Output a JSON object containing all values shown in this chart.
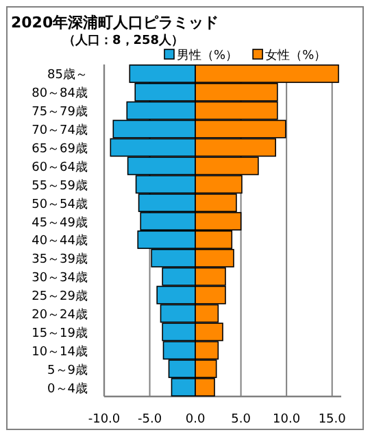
{
  "chart_data": {
    "type": "bar",
    "orientation": "horizontal",
    "stacked": true,
    "title": "2020年深浦町人口ピラミッド",
    "subtitle": "（人口：8，258人）",
    "categories": [
      "85歳～",
      "80～84歳",
      "75～79歳",
      "70～74歳",
      "65～69歳",
      "60～64歳",
      "55～59歳",
      "50～54歳",
      "45～49歳",
      "40～44歳",
      "35～39歳",
      "30～34歳",
      "25～29歳",
      "20～24歳",
      "15～19歳",
      "10～14歳",
      "5～9歳",
      "0～4歳"
    ],
    "series": [
      {
        "name": "男性（%）",
        "color": "#1aa8e0",
        "values": [
          -7.2,
          -6.6,
          -7.5,
          -9.0,
          -9.3,
          -7.4,
          -6.5,
          -6.2,
          -6.0,
          -6.3,
          -4.8,
          -3.6,
          -4.2,
          -3.8,
          -3.6,
          -3.5,
          -2.9,
          -2.6
        ]
      },
      {
        "name": "女性（%）",
        "color": "#ff8800",
        "values": [
          15.7,
          9.0,
          9.0,
          9.9,
          8.8,
          6.9,
          5.1,
          4.5,
          5.0,
          4.0,
          4.2,
          3.3,
          3.3,
          2.5,
          3.0,
          2.5,
          2.3,
          2.1
        ]
      }
    ],
    "xlim": [
      -10,
      16
    ],
    "xticks": [
      {
        "value": -10,
        "label": "-10.0"
      },
      {
        "value": -5,
        "label": "-5.0"
      },
      {
        "value": 0,
        "label": "0.0"
      },
      {
        "value": 5,
        "label": "5.0"
      },
      {
        "value": 10,
        "label": "10.0"
      },
      {
        "value": 15,
        "label": "15.0"
      }
    ],
    "grid": "x",
    "legend": "top right"
  }
}
